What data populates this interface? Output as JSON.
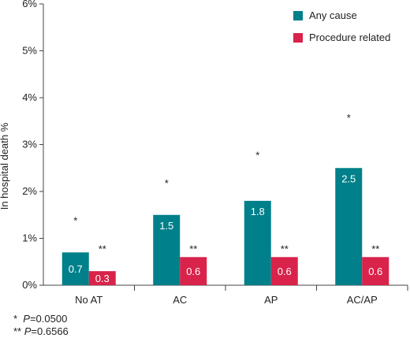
{
  "chart_data": {
    "type": "bar",
    "ylabel": "In hospital death %",
    "ylim": [
      0,
      6
    ],
    "yticks": [
      "0%",
      "1%",
      "2%",
      "3%",
      "4%",
      "5%",
      "6%"
    ],
    "categories": [
      "No AT",
      "AC",
      "AP",
      "AC/AP"
    ],
    "series": [
      {
        "name": "Any cause",
        "color": "#00808a",
        "values": [
          0.7,
          1.5,
          1.8,
          2.5
        ],
        "labels": [
          "0.7",
          "1.5",
          "1.8",
          "2.5"
        ],
        "marks": [
          "*",
          "*",
          "*",
          "*"
        ],
        "mark_heights": [
          1.4,
          2.2,
          2.8,
          3.6
        ]
      },
      {
        "name": "Procedure related",
        "color": "#d9234a",
        "values": [
          0.3,
          0.6,
          0.6,
          0.6
        ],
        "labels": [
          "0.3",
          "0.6",
          "0.6",
          "0.6"
        ],
        "marks": [
          "**",
          "**",
          "**",
          "**"
        ],
        "mark_heights": [
          0.8,
          0.8,
          0.8,
          0.8
        ]
      }
    ],
    "legend": "top-right",
    "grid": false
  },
  "footnotes": [
    {
      "mark": "*",
      "label": "P",
      "value": "=0.0500"
    },
    {
      "mark": "**",
      "label": "P",
      "value": "=0.6566"
    }
  ]
}
